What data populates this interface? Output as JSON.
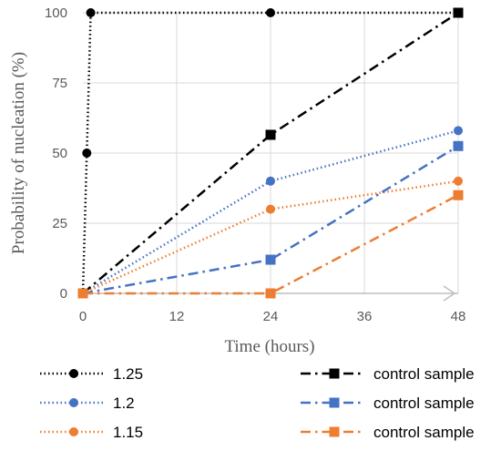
{
  "chart_data": {
    "type": "line",
    "xlabel": "Time (hours)",
    "ylabel": "Probability of nucleation (%)",
    "xlim": [
      0,
      48
    ],
    "ylim": [
      0,
      100
    ],
    "x_ticks": [
      "0",
      "12",
      "24",
      "36",
      "48"
    ],
    "y_ticks": [
      "0",
      "25",
      "50",
      "75",
      "100"
    ],
    "grid": true,
    "legend_position": "bottom",
    "series": [
      {
        "name": "1.25",
        "color": "#000000",
        "style": "dotted",
        "marker": "circle",
        "x": [
          0,
          0.5,
          1,
          24,
          48
        ],
        "y": [
          0,
          50,
          100,
          100,
          100
        ]
      },
      {
        "name": "1.2",
        "color": "#4472C4",
        "style": "dotted",
        "marker": "circle",
        "x": [
          0,
          24,
          48
        ],
        "y": [
          0,
          40,
          58
        ]
      },
      {
        "name": "1.15",
        "color": "#ED7D31",
        "style": "dotted",
        "marker": "circle",
        "x": [
          0,
          24,
          48
        ],
        "y": [
          0,
          30,
          40
        ]
      },
      {
        "name": "control sample",
        "color": "#000000",
        "style": "dashdot",
        "marker": "square",
        "x": [
          0,
          24,
          48
        ],
        "y": [
          0,
          56.5,
          100
        ]
      },
      {
        "name": "control sample",
        "color": "#4472C4",
        "style": "dashdot",
        "marker": "square",
        "x": [
          0,
          24,
          48
        ],
        "y": [
          0,
          12,
          52.5
        ]
      },
      {
        "name": "control sample",
        "color": "#ED7D31",
        "style": "dashdot",
        "marker": "square",
        "x": [
          0,
          24,
          48
        ],
        "y": [
          0,
          0,
          35
        ]
      }
    ]
  }
}
